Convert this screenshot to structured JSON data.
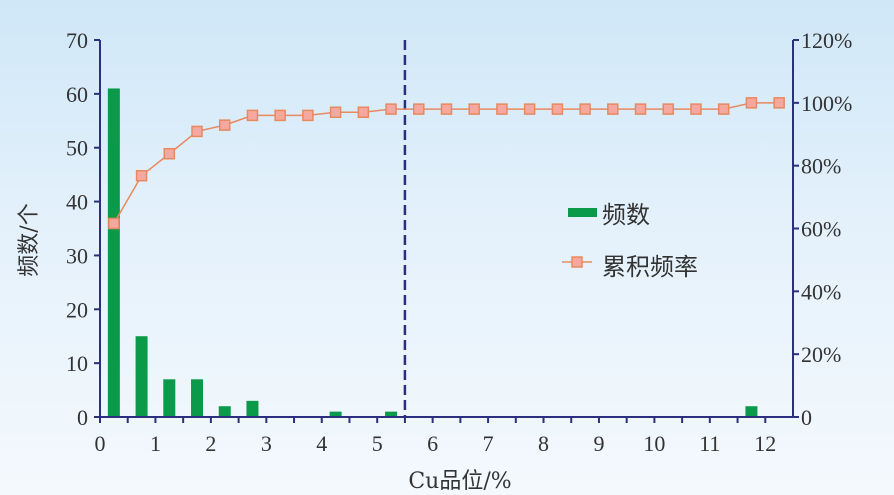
{
  "chart_data": {
    "type": "bar",
    "xlabel": "Cu品位/%",
    "ylabel": "频数/个",
    "xlim": [
      0,
      12.5
    ],
    "ylim": [
      0,
      70
    ],
    "y2lim": [
      0,
      120
    ],
    "xticks": [
      "0",
      "1",
      "2",
      "3",
      "4",
      "5",
      "6",
      "7",
      "8",
      "9",
      "10",
      "11",
      "12"
    ],
    "yticks": [
      "0",
      "10",
      "20",
      "30",
      "40",
      "50",
      "60",
      "70"
    ],
    "y2ticks": [
      "0",
      "20%",
      "40%",
      "60%",
      "80%",
      "100%",
      "120%"
    ],
    "x": [
      0.25,
      0.75,
      1.25,
      1.75,
      2.25,
      2.75,
      3.25,
      3.75,
      4.25,
      4.75,
      5.25,
      5.75,
      6.25,
      6.75,
      7.25,
      7.75,
      8.25,
      8.75,
      9.25,
      9.75,
      10.25,
      10.75,
      11.25,
      11.75,
      12.25
    ],
    "series": [
      {
        "name": "频数",
        "type": "bar",
        "axis": "left",
        "color": "#0a9a4a",
        "values": [
          61,
          15,
          7,
          7,
          2,
          3,
          0,
          0,
          1,
          0,
          1,
          0,
          0,
          0,
          0,
          0,
          0,
          0,
          0,
          0,
          0,
          0,
          0,
          2,
          0
        ]
      },
      {
        "name": "累积频率",
        "type": "line",
        "axis": "right",
        "color": "#e8895f",
        "marker_fill": "#f5a8a0",
        "values": [
          61.6,
          76.8,
          83.8,
          90.9,
          92.9,
          96.0,
          96.0,
          96.0,
          97.0,
          97.0,
          98.0,
          98.0,
          98.0,
          98.0,
          98.0,
          98.0,
          98.0,
          98.0,
          98.0,
          98.0,
          98.0,
          98.0,
          98.0,
          100,
          100
        ]
      }
    ],
    "reference_line_x": 5.5,
    "legend_placement": "center-right",
    "grid": false
  }
}
